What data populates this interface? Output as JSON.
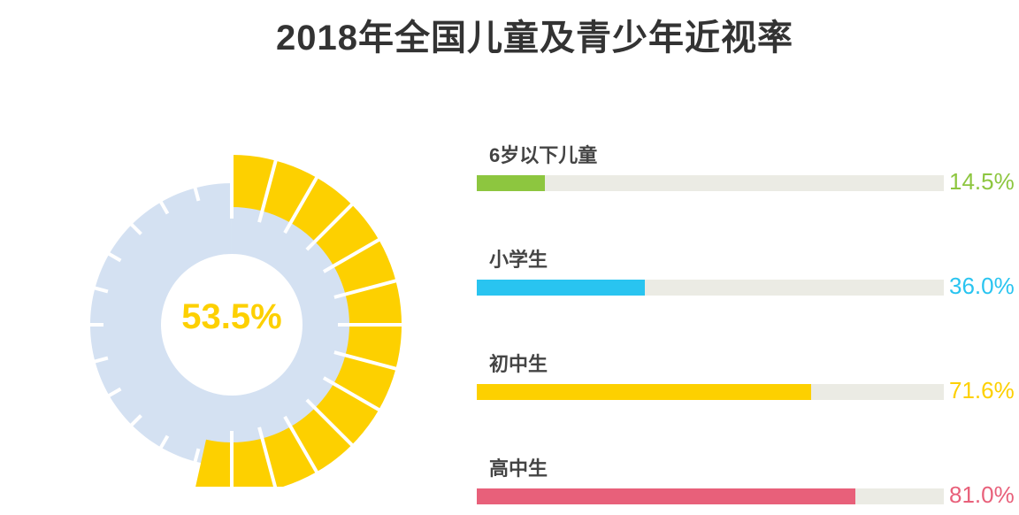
{
  "title": "2018年全国儿童及青少年近视率",
  "chart_data": {
    "type": "bar",
    "title": "2018年全国儿童及青少年近视率",
    "overall": {
      "value": 53.5,
      "label": "53.5%",
      "color": "#fdd000",
      "track_color": "#d4e1f2"
    },
    "categories": [
      "6岁以下儿童",
      "小学生",
      "初中生",
      "高中生"
    ],
    "values": [
      14.5,
      36.0,
      71.6,
      81.0
    ],
    "value_labels": [
      "14.5%",
      "36.0%",
      "71.6%",
      "81.0%"
    ],
    "colors": [
      "#8dc63f",
      "#29c4f0",
      "#fdd000",
      "#e8607a"
    ],
    "track_color": "#ebebe4",
    "xlim": [
      0,
      100
    ]
  }
}
